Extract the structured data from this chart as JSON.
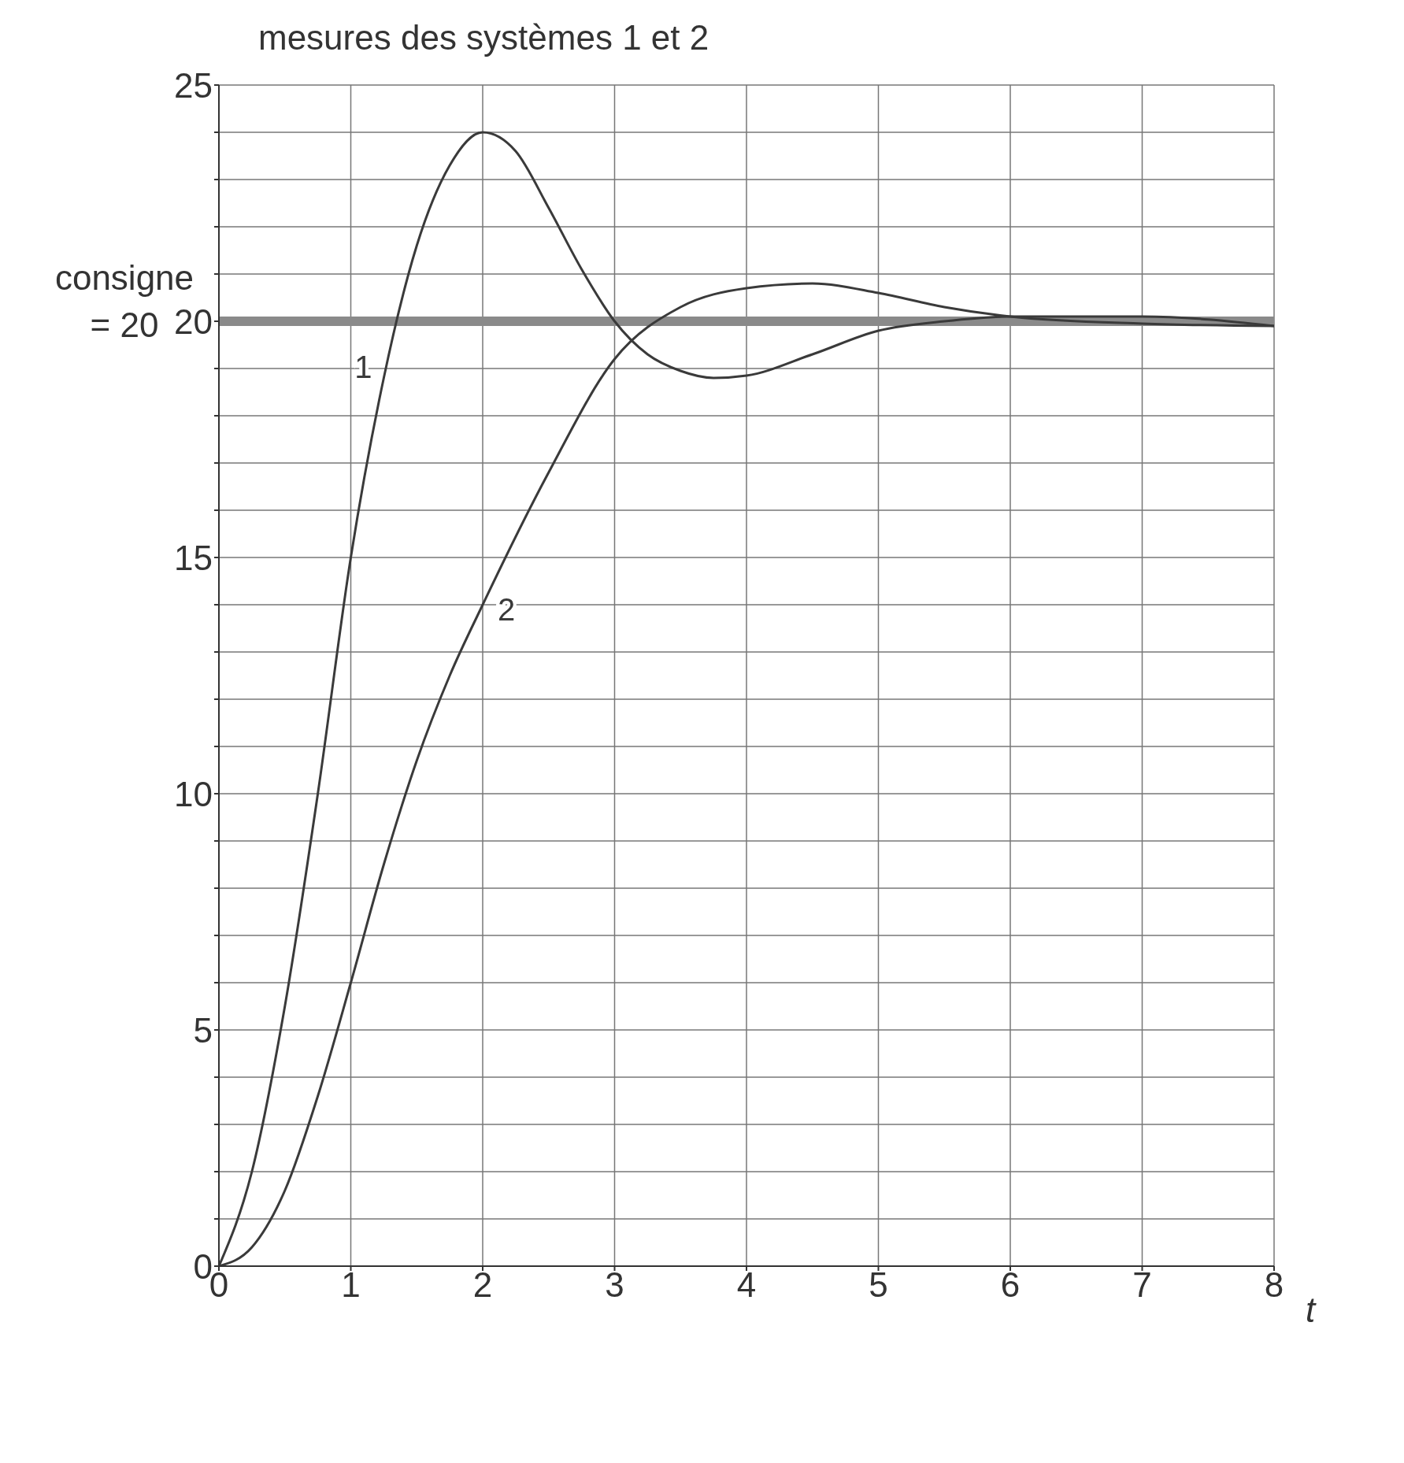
{
  "chart_data": {
    "type": "line",
    "ylabel": "mesures des systèmes 1 et 2",
    "xlabel": "t",
    "series": [
      {
        "name": "1",
        "color": "#3a3a3a",
        "x": [
          0,
          0.25,
          0.5,
          0.75,
          1,
          1.25,
          1.5,
          1.75,
          2,
          2.25,
          2.5,
          2.75,
          3,
          3.25,
          3.5,
          3.75,
          4,
          4.5,
          5,
          5.5,
          6,
          7,
          8
        ],
        "values": [
          0,
          2,
          5.5,
          10,
          15,
          18.8,
          21.6,
          23.3,
          24,
          23.6,
          22.4,
          21.1,
          20,
          19.3,
          18.95,
          18.8,
          18.85,
          19.3,
          19.8,
          20,
          20.1,
          20.1,
          19.9
        ]
      },
      {
        "name": "2",
        "color": "#3a3a3a",
        "x": [
          0,
          0.25,
          0.5,
          0.75,
          1,
          1.25,
          1.5,
          1.75,
          2,
          2.5,
          3,
          3.5,
          4,
          4.5,
          5,
          5.5,
          6,
          7,
          8
        ],
        "values": [
          0,
          0.4,
          1.6,
          3.6,
          6,
          8.5,
          10.7,
          12.5,
          14,
          16.8,
          19.2,
          20.3,
          20.7,
          20.8,
          20.6,
          20.3,
          20.1,
          19.95,
          19.9
        ]
      }
    ],
    "xlim": [
      0,
      8
    ],
    "xticks": [
      0,
      1,
      2,
      3,
      4,
      5,
      6,
      7,
      8
    ],
    "ylim": [
      0,
      25
    ],
    "yticks": [
      0,
      {
        "value": 1,
        "label": null
      },
      {
        "value": 2,
        "label": null
      },
      {
        "value": 3,
        "label": null
      },
      {
        "value": 4,
        "label": null
      },
      5,
      {
        "value": 6,
        "label": null
      },
      {
        "value": 7,
        "label": null
      },
      {
        "value": 8,
        "label": null
      },
      {
        "value": 9,
        "label": null
      },
      10,
      {
        "value": 11,
        "label": null
      },
      {
        "value": 12,
        "label": null
      },
      {
        "value": 13,
        "label": null
      },
      {
        "value": 14,
        "label": null
      },
      15,
      {
        "value": 16,
        "label": null
      },
      {
        "value": 17,
        "label": null
      },
      {
        "value": 18,
        "label": null
      },
      {
        "value": 19,
        "label": null
      },
      20,
      {
        "value": 21,
        "label": null
      },
      {
        "value": 22,
        "label": null
      },
      {
        "value": 23,
        "label": null
      },
      {
        "value": 24,
        "label": null
      },
      25
    ],
    "ref_lines": [
      {
        "axis": "y",
        "value": 20,
        "label": "consigne = 20",
        "color": "#8a8a8a"
      }
    ],
    "grid": true,
    "marker": "none",
    "line_style": "solid"
  }
}
